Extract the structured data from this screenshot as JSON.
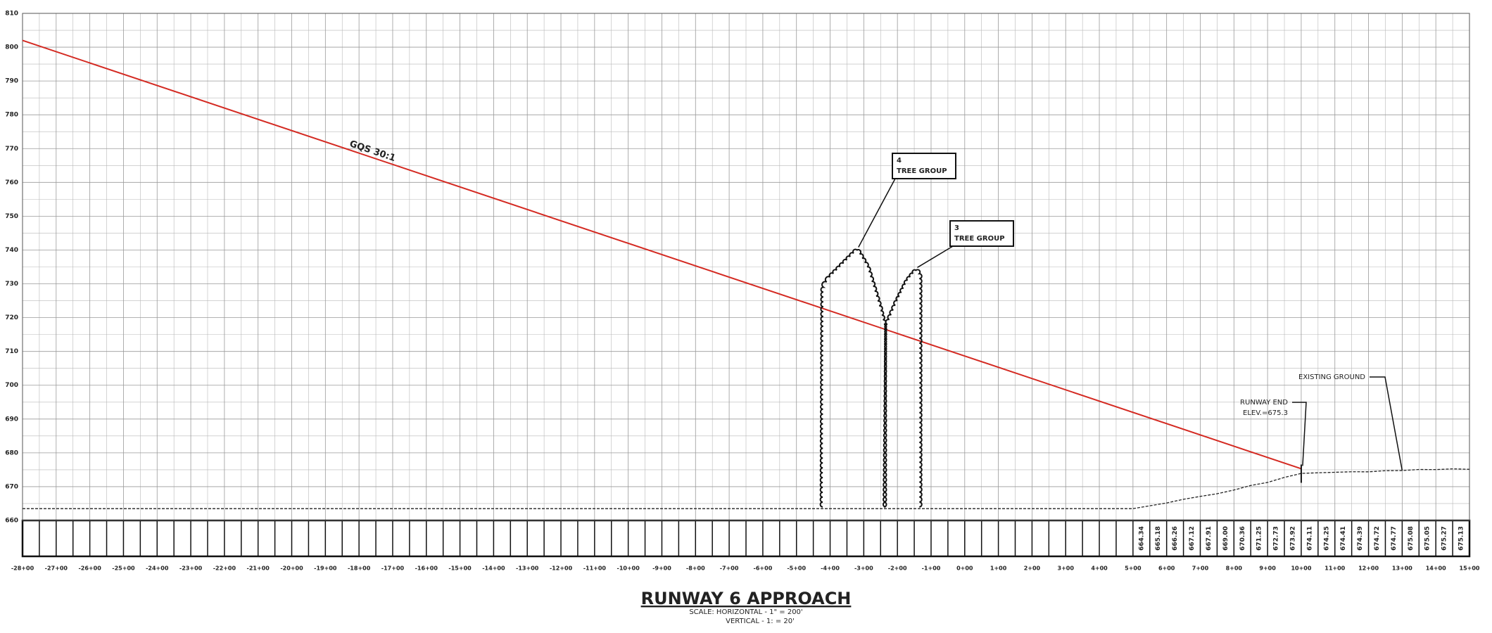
{
  "chart_data": {
    "type": "line",
    "title": "RUNWAY 6 APPROACH",
    "notes": [
      "SCALE: HORIZONTAL - 1\" = 200'",
      "VERTICAL - 1: = 20'"
    ],
    "xlim": [
      -28,
      15
    ],
    "ylim": [
      660,
      810
    ],
    "yticks": [
      660,
      670,
      680,
      690,
      700,
      710,
      720,
      730,
      740,
      750,
      760,
      770,
      780,
      790,
      800,
      810
    ],
    "xticks": [
      {
        "value": -28,
        "label": "-28+00"
      },
      {
        "value": -27,
        "label": "-27+00"
      },
      {
        "value": -26,
        "label": "-26+00"
      },
      {
        "value": -25,
        "label": "-25+00"
      },
      {
        "value": -24,
        "label": "-24+00"
      },
      {
        "value": -23,
        "label": "-23+00"
      },
      {
        "value": -22,
        "label": "-22+00"
      },
      {
        "value": -21,
        "label": "-21+00"
      },
      {
        "value": -20,
        "label": "-20+00"
      },
      {
        "value": -19,
        "label": "-19+00"
      },
      {
        "value": -18,
        "label": "-18+00"
      },
      {
        "value": -17,
        "label": "-17+00"
      },
      {
        "value": -16,
        "label": "-16+00"
      },
      {
        "value": -15,
        "label": "-15+00"
      },
      {
        "value": -14,
        "label": "-14+00"
      },
      {
        "value": -13,
        "label": "-13+00"
      },
      {
        "value": -12,
        "label": "-12+00"
      },
      {
        "value": -11,
        "label": "-11+00"
      },
      {
        "value": -10,
        "label": "-10+00"
      },
      {
        "value": -9,
        "label": "-9+00"
      },
      {
        "value": -8,
        "label": "-8+00"
      },
      {
        "value": -7,
        "label": "-7+00"
      },
      {
        "value": -6,
        "label": "-6+00"
      },
      {
        "value": -5,
        "label": "-5+00"
      },
      {
        "value": -4,
        "label": "-4+00"
      },
      {
        "value": -3,
        "label": "-3+00"
      },
      {
        "value": -2,
        "label": "-2+00"
      },
      {
        "value": -1,
        "label": "-1+00"
      },
      {
        "value": 0,
        "label": "0+00"
      },
      {
        "value": 1,
        "label": "1+00"
      },
      {
        "value": 2,
        "label": "2+00"
      },
      {
        "value": 3,
        "label": "3+00"
      },
      {
        "value": 4,
        "label": "4+00"
      },
      {
        "value": 5,
        "label": "5+00"
      },
      {
        "value": 6,
        "label": "6+00"
      },
      {
        "value": 7,
        "label": "7+00"
      },
      {
        "value": 8,
        "label": "8+00"
      },
      {
        "value": 9,
        "label": "9+00"
      },
      {
        "value": 10,
        "label": "10+00"
      },
      {
        "value": 11,
        "label": "11+00"
      },
      {
        "value": 12,
        "label": "12+00"
      },
      {
        "value": 13,
        "label": "13+00"
      },
      {
        "value": 14,
        "label": "14+00"
      },
      {
        "value": 15,
        "label": "15+00"
      }
    ],
    "grid": true,
    "series": [
      {
        "name": "GQS 30:1",
        "color": "#d42a22",
        "x": [
          -28,
          10
        ],
        "values": [
          802,
          675.3
        ]
      },
      {
        "name": "EXISTING GROUND",
        "color": "#222222",
        "x": [
          -28,
          5,
          5.5,
          6,
          6.5,
          7,
          7.5,
          8,
          8.5,
          9,
          9.5,
          10,
          10.5,
          11,
          11.5,
          12,
          12.5,
          13,
          13.5,
          14,
          14.5,
          15
        ],
        "values": [
          663.5,
          663.5,
          664.34,
          665.18,
          666.26,
          667.12,
          667.91,
          669.0,
          670.36,
          671.25,
          672.73,
          673.92,
          674.11,
          674.25,
          674.41,
          674.39,
          674.72,
          674.77,
          675.08,
          675.05,
          675.27,
          675.13
        ],
        "value_labels": [
          null,
          null,
          "664.34",
          "665.18",
          "666.26",
          "667.12",
          "667.91",
          "669.00",
          "670.36",
          "671.25",
          "672.73",
          "673.92",
          "674.11",
          "674.25",
          "674.41",
          "674.39",
          "674.72",
          "674.77",
          "675.08",
          "675.05",
          "675.27",
          "675.13"
        ]
      }
    ],
    "tree_groups": [
      {
        "number": "4",
        "label": "TREE GROUP",
        "x": [
          -4.22,
          -4.2,
          -4.0,
          -3.6,
          -3.2,
          -2.9,
          -2.5,
          -2.4,
          -2.4
        ],
        "values": [
          664,
          729,
          732,
          736,
          740,
          735,
          722,
          718,
          664
        ]
      },
      {
        "number": "3",
        "label": "TREE GROUP",
        "x": [
          -2.35,
          -2.3,
          -2.0,
          -1.7,
          -1.45,
          -1.35,
          -1.35
        ],
        "values": [
          664,
          718,
          725,
          731,
          734,
          733,
          664
        ]
      }
    ],
    "annotations": {
      "runway_end": [
        "RUNWAY END",
        "ELEV.=675.3"
      ]
    }
  }
}
